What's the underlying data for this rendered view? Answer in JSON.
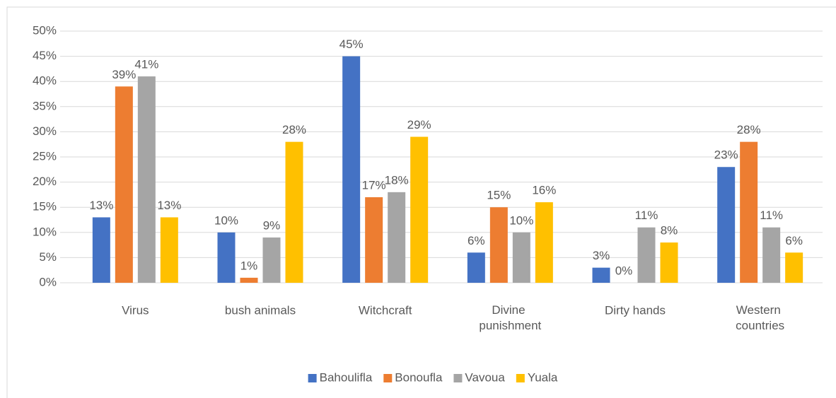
{
  "chart_data": {
    "type": "bar",
    "categories": [
      "Virus",
      "bush animals",
      "Witchcraft",
      "Divine punishment",
      "Dirty hands",
      "Western countries"
    ],
    "series": [
      {
        "name": "Bahoulifla",
        "color": "#4472c4",
        "values": [
          13,
          10,
          45,
          6,
          3,
          23
        ],
        "value_labels": [
          "13%",
          "10%",
          "45%",
          "6%",
          "3%",
          "23%"
        ]
      },
      {
        "name": "Bonoufla",
        "color": "#ed7d31",
        "values": [
          39,
          1,
          17,
          15,
          0,
          28
        ],
        "value_labels": [
          "39%",
          "1%",
          "17%",
          "15%",
          "0%",
          "28%"
        ]
      },
      {
        "name": "Vavoua",
        "color": "#a5a5a5",
        "values": [
          41,
          9,
          18,
          10,
          11,
          11
        ],
        "value_labels": [
          "41%",
          "9%",
          "18%",
          "10%",
          "11%",
          "11%"
        ]
      },
      {
        "name": "Yuala",
        "color": "#ffc000",
        "values": [
          13,
          28,
          29,
          16,
          8,
          6
        ],
        "value_labels": [
          "13%",
          "28%",
          "29%",
          "16%",
          "8%",
          "6%"
        ]
      }
    ],
    "ylim": [
      0,
      50
    ],
    "yticks": [
      {
        "value": 0,
        "label": "0%"
      },
      {
        "value": 5,
        "label": "5%"
      },
      {
        "value": 10,
        "label": "10%"
      },
      {
        "value": 15,
        "label": "15%"
      },
      {
        "value": 20,
        "label": "20%"
      },
      {
        "value": 25,
        "label": "25%"
      },
      {
        "value": 30,
        "label": "30%"
      },
      {
        "value": 35,
        "label": "35%"
      },
      {
        "value": 40,
        "label": "40%"
      },
      {
        "value": 45,
        "label": "45%"
      },
      {
        "value": 50,
        "label": "50%"
      }
    ],
    "grid": true,
    "legend": "bottom"
  }
}
